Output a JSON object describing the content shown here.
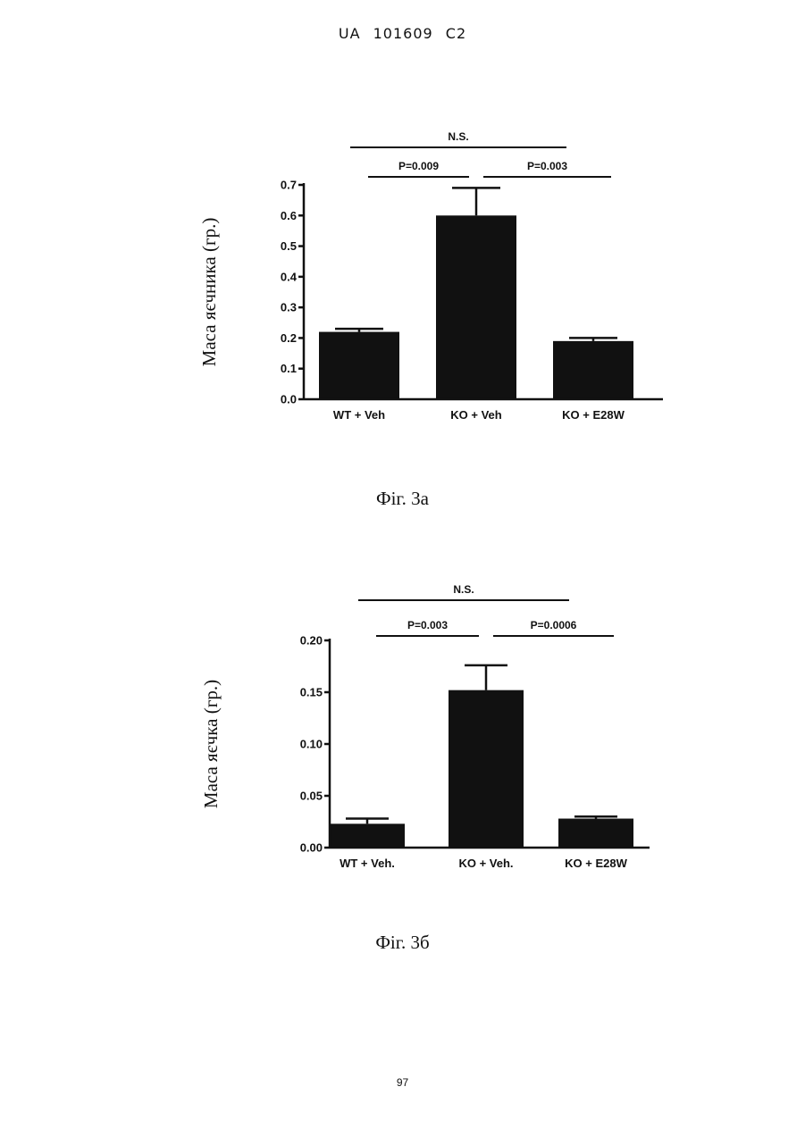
{
  "header": "UA 101609 C2",
  "page_number": "97",
  "chart_data": [
    {
      "id": "fig3a",
      "type": "bar",
      "caption": "Фіг. 3а",
      "ylabel": "Маса яєчника (гр.)",
      "categories": [
        "WT + Veh",
        "KO + Veh",
        "KO + E28W"
      ],
      "values": [
        0.22,
        0.6,
        0.19
      ],
      "errors": [
        0.01,
        0.09,
        0.01
      ],
      "ylim": [
        0,
        0.7
      ],
      "yticks": [
        "0.0",
        "0.1",
        "0.2",
        "0.3",
        "0.4",
        "0.5",
        "0.6",
        "0.7"
      ],
      "bar_color": "#111111",
      "significance": [
        {
          "label": "N.S.",
          "from": 0,
          "to": 2,
          "level": 2
        },
        {
          "label": "P=0.009",
          "from": 0,
          "to": 1,
          "level": 1
        },
        {
          "label": "P=0.003",
          "from": 1,
          "to": 2,
          "level": 1
        }
      ]
    },
    {
      "id": "fig3b",
      "type": "bar",
      "caption": "Фіг. 3б",
      "ylabel": "Маса яєчка (гр.)",
      "categories": [
        "WT + Veh.",
        "KO + Veh.",
        "KO + E28W"
      ],
      "values": [
        0.023,
        0.152,
        0.028
      ],
      "errors": [
        0.005,
        0.024,
        0.002
      ],
      "ylim": [
        0,
        0.2
      ],
      "yticks": [
        "0.00",
        "0.05",
        "0.10",
        "0.15",
        "0.20"
      ],
      "bar_color": "#111111",
      "significance": [
        {
          "label": "N.S.",
          "from": 0,
          "to": 2,
          "level": 2
        },
        {
          "label": "P=0.003",
          "from": 0,
          "to": 1,
          "level": 1
        },
        {
          "label": "P=0.0006",
          "from": 1,
          "to": 2,
          "level": 1
        }
      ]
    }
  ]
}
